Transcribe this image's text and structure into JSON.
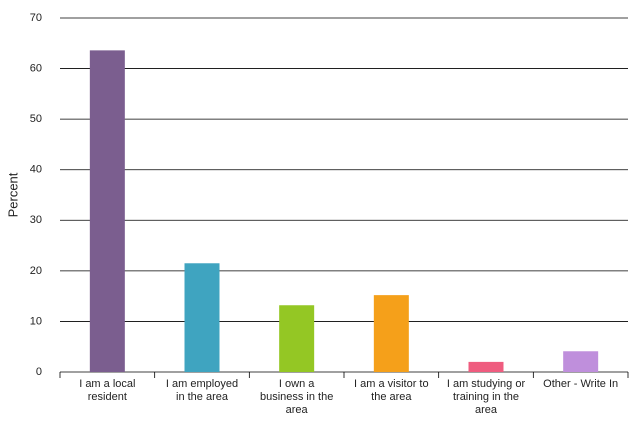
{
  "chart_data": {
    "type": "bar",
    "y_label": "Percent",
    "categories": [
      "I am a local\nresident",
      "I am employed\nin the area",
      "I own a\nbusiness in the\narea",
      "I am a visitor to\nthe area",
      "I am studying or\ntraining in the\narea",
      "Other - Write In"
    ],
    "values": [
      63.6,
      21.5,
      13.2,
      15.2,
      2.0,
      4.1
    ],
    "colors": [
      "#7b5e8f",
      "#3fa4c0",
      "#94c724",
      "#f5a01a",
      "#ef5c7f",
      "#bf8fdc"
    ],
    "ylim": [
      0,
      70
    ],
    "yticks": [
      0,
      10,
      20,
      30,
      40,
      50,
      60,
      70
    ],
    "grid": true
  }
}
